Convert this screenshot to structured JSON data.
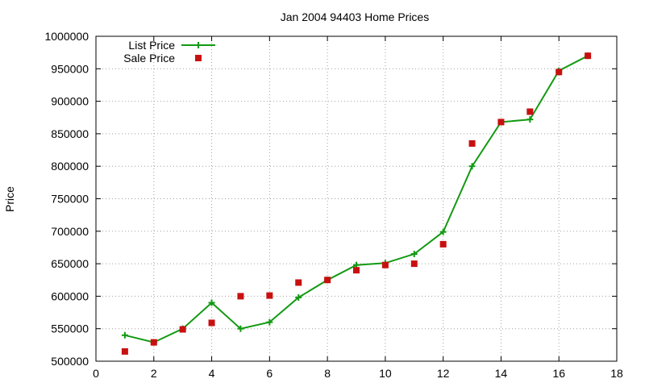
{
  "chart_data": {
    "type": "line",
    "title": "Jan 2004 94403 Home Prices",
    "xlabel": "",
    "ylabel": "Price",
    "xlim": [
      0,
      18
    ],
    "ylim": [
      500000,
      1000000
    ],
    "xticks": [
      0,
      2,
      4,
      6,
      8,
      10,
      12,
      14,
      16,
      18
    ],
    "xtick_labels": [
      "0",
      "2",
      "4",
      "6",
      "8",
      "10",
      "12",
      "14",
      "16",
      "18"
    ],
    "yticks": [
      500000,
      550000,
      600000,
      650000,
      700000,
      750000,
      800000,
      850000,
      900000,
      950000,
      1000000
    ],
    "ytick_labels": [
      "500000",
      "550000",
      "600000",
      "650000",
      "700000",
      "750000",
      "800000",
      "850000",
      "900000",
      "950000",
      "1000000"
    ],
    "grid": true,
    "legend_position": "top-left",
    "series": [
      {
        "name": "List Price",
        "style": "line-plus",
        "color": "#129a12",
        "x": [
          1,
          2,
          3,
          4,
          5,
          6,
          7,
          8,
          9,
          10,
          11,
          12,
          13,
          14,
          15,
          16,
          17
        ],
        "y": [
          540000,
          529000,
          550000,
          590000,
          550000,
          560000,
          598000,
          625000,
          648000,
          651000,
          665000,
          699000,
          800000,
          868000,
          872000,
          947000,
          970000
        ]
      },
      {
        "name": "Sale Price",
        "style": "square",
        "color": "#c81010",
        "x": [
          1,
          2,
          3,
          4,
          5,
          6,
          7,
          8,
          9,
          10,
          11,
          12,
          13,
          14,
          15,
          16,
          17
        ],
        "y": [
          515000,
          529000,
          549000,
          559000,
          600000,
          601000,
          621000,
          625000,
          640000,
          648000,
          650000,
          680000,
          835000,
          868000,
          884000,
          945000,
          970000
        ]
      }
    ]
  }
}
